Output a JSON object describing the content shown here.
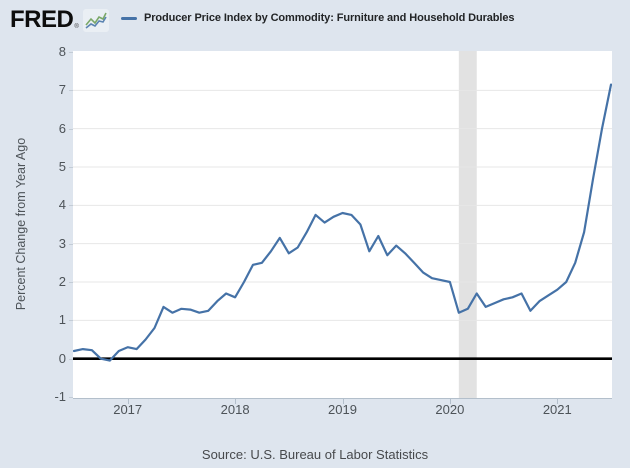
{
  "header": {
    "logo_text": "FRED",
    "logo_registered": "®",
    "legend": {
      "label": "Producer Price Index by Commodity: Furniture and Household Durables"
    }
  },
  "footer": {
    "source": "Source: U.S. Bureau of Labor Statistics"
  },
  "colors": {
    "background": "#dee5ee",
    "plot_background": "#ffffff",
    "line": "#4572a7",
    "zero_line": "#000000",
    "gridline": "#e7e7e7",
    "recession_band": "#e2e2e2",
    "axis_text": "#4d5358",
    "legend_swatch": "#4572a7",
    "logo_icon_green": "#7aa868",
    "logo_icon_blue": "#5b84b1"
  },
  "chart_data": {
    "type": "line",
    "title": "Producer Price Index by Commodity: Furniture and Household Durables",
    "ylabel": "Percent Change from Year Ago",
    "xlabel": "",
    "ylim": [
      -1,
      8
    ],
    "y_ticks": [
      8,
      7,
      6,
      5,
      4,
      3,
      2,
      1,
      0,
      -1
    ],
    "x_ticks": [
      "2017",
      "2018",
      "2019",
      "2020",
      "2021"
    ],
    "grid": true,
    "legend_position": "top",
    "frequency": "monthly",
    "zero_line": 0,
    "recession_band": {
      "start": "2020-02",
      "end": "2020-04"
    },
    "x": [
      "2016-07",
      "2016-08",
      "2016-09",
      "2016-10",
      "2016-11",
      "2016-12",
      "2017-01",
      "2017-02",
      "2017-03",
      "2017-04",
      "2017-05",
      "2017-06",
      "2017-07",
      "2017-08",
      "2017-09",
      "2017-10",
      "2017-11",
      "2017-12",
      "2018-01",
      "2018-02",
      "2018-03",
      "2018-04",
      "2018-05",
      "2018-06",
      "2018-07",
      "2018-08",
      "2018-09",
      "2018-10",
      "2018-11",
      "2018-12",
      "2019-01",
      "2019-02",
      "2019-03",
      "2019-04",
      "2019-05",
      "2019-06",
      "2019-07",
      "2019-08",
      "2019-09",
      "2019-10",
      "2019-11",
      "2019-12",
      "2020-01",
      "2020-02",
      "2020-03",
      "2020-04",
      "2020-05",
      "2020-06",
      "2020-07",
      "2020-08",
      "2020-09",
      "2020-10",
      "2020-11",
      "2020-12",
      "2021-01",
      "2021-02",
      "2021-03",
      "2021-04",
      "2021-05",
      "2021-06",
      "2021-07"
    ],
    "values": [
      0.2,
      0.25,
      0.22,
      0.0,
      -0.05,
      0.2,
      0.3,
      0.25,
      0.5,
      0.8,
      1.35,
      1.2,
      1.3,
      1.28,
      1.2,
      1.25,
      1.5,
      1.7,
      1.6,
      2.0,
      2.45,
      2.5,
      2.8,
      3.15,
      2.75,
      2.9,
      3.3,
      3.75,
      3.55,
      3.7,
      3.8,
      3.75,
      3.5,
      2.8,
      3.2,
      2.7,
      2.95,
      2.75,
      2.5,
      2.25,
      2.1,
      2.05,
      2.0,
      1.2,
      1.3,
      1.7,
      1.35,
      1.45,
      1.55,
      1.6,
      1.7,
      1.25,
      1.5,
      1.65,
      1.8,
      2.0,
      2.5,
      3.3,
      4.7,
      6.0,
      7.15
    ]
  }
}
